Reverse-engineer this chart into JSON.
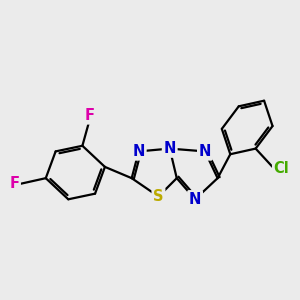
{
  "bg_color": "#ebebeb",
  "bond_color": "#000000",
  "bond_width": 1.6,
  "atom_colors": {
    "N": "#0000cc",
    "S": "#bbaa00",
    "F": "#dd00aa",
    "Cl": "#44aa00",
    "C": "#000000"
  },
  "font_size_atom": 10.5
}
